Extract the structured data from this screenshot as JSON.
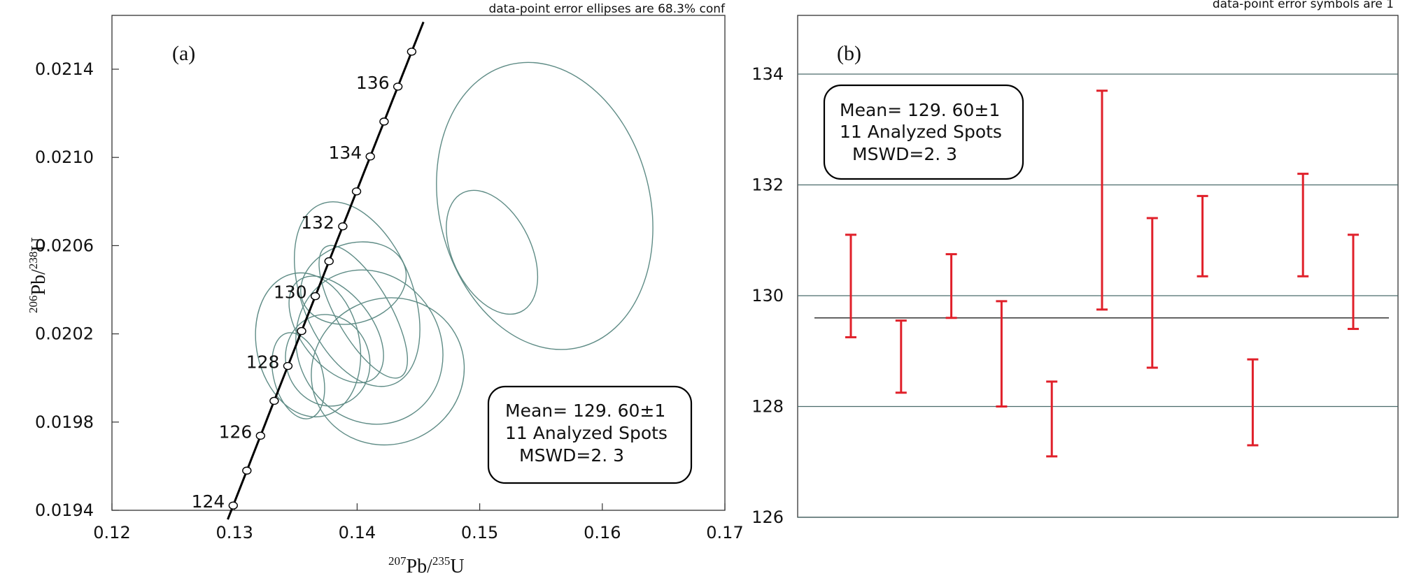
{
  "chart_data": [
    {
      "type": "scatter",
      "panel_label": "(a)",
      "note": "data-point error ellipses are 68.3% conf",
      "xlabel_sup": "207",
      "xlabel_main": "Pb/",
      "xlabel_sup2": "235",
      "xlabel_end": "U",
      "ylabel_sup": "206",
      "ylabel_main": "Pb/",
      "ylabel_sup2": "238",
      "ylabel_end": "U",
      "xlim": [
        0.12,
        0.17
      ],
      "ylim": [
        0.0194,
        0.0216
      ],
      "xticks": [
        0.12,
        0.13,
        0.14,
        0.15,
        0.16,
        0.17
      ],
      "xtick_labels": [
        "0.12",
        "0.13",
        "0.14",
        "0.15",
        "0.16",
        "0.17"
      ],
      "yticks": [
        0.0194,
        0.0198,
        0.0202,
        0.0206,
        0.021,
        0.0214
      ],
      "ytick_labels": [
        "0.0194",
        "0.0198",
        "0.0202",
        "0.0206",
        "0.0210",
        "0.0214"
      ],
      "concordia_ages": [
        124,
        125,
        126,
        127,
        128,
        129,
        130,
        131,
        132,
        133,
        134,
        135,
        136,
        137
      ],
      "concordia_labels": [
        "124",
        "126",
        "128",
        "130",
        "132",
        "134",
        "136"
      ],
      "ellipses": [
        {
          "x": 0.1553,
          "y": 0.02078,
          "rx": 0.0086,
          "ry": 0.00066,
          "rot": -14
        },
        {
          "x": 0.151,
          "y": 0.02057,
          "rx": 0.0032,
          "ry": 0.0003,
          "rot": -26
        },
        {
          "x": 0.1397,
          "y": 0.02043,
          "rx": 0.0044,
          "ry": 0.00018,
          "rot": -18
        },
        {
          "x": 0.1405,
          "y": 0.0203,
          "rx": 0.0022,
          "ry": 0.00034,
          "rot": -30
        },
        {
          "x": 0.14,
          "y": 0.02038,
          "rx": 0.0045,
          "ry": 0.00044,
          "rot": -22
        },
        {
          "x": 0.1383,
          "y": 0.02022,
          "rx": 0.0029,
          "ry": 0.00028,
          "rot": -38
        },
        {
          "x": 0.141,
          "y": 0.02014,
          "rx": 0.0058,
          "ry": 0.00036,
          "rot": -32
        },
        {
          "x": 0.1425,
          "y": 0.02003,
          "rx": 0.0063,
          "ry": 0.00033,
          "rot": -25
        },
        {
          "x": 0.1376,
          "y": 0.02008,
          "rx": 0.0034,
          "ry": 0.00021,
          "rot": -20
        },
        {
          "x": 0.1352,
          "y": 0.02001,
          "rx": 0.002,
          "ry": 0.0002,
          "rot": -15
        },
        {
          "x": 0.136,
          "y": 0.02015,
          "rx": 0.0042,
          "ry": 0.00033,
          "rot": -12
        }
      ],
      "mean_box": {
        "line1": "Mean= 129. 60±1",
        "line2": "11 Analyzed Spots",
        "line3": "MSWD=2. 3"
      }
    },
    {
      "type": "bar",
      "panel_label": "(b)",
      "note": "data-point error symbols are 1",
      "ylim": [
        126,
        135
      ],
      "yticks": [
        126,
        128,
        130,
        132,
        134
      ],
      "ytick_labels": [
        "126",
        "128",
        "130",
        "132",
        "134"
      ],
      "mean": 129.6,
      "error_bars": [
        {
          "low": 129.25,
          "high": 131.1
        },
        {
          "low": 128.25,
          "high": 129.55
        },
        {
          "low": 129.6,
          "high": 130.75
        },
        {
          "low": 128.0,
          "high": 129.9
        },
        {
          "low": 127.1,
          "high": 128.45
        },
        {
          "low": 129.75,
          "high": 133.7
        },
        {
          "low": 128.7,
          "high": 131.4
        },
        {
          "low": 130.35,
          "high": 131.8
        },
        {
          "low": 127.3,
          "high": 128.85
        },
        {
          "low": 130.35,
          "high": 132.2
        },
        {
          "low": 129.4,
          "high": 131.1
        }
      ],
      "mean_box": {
        "line1": "Mean= 129. 60±1",
        "line2": "11 Analyzed Spots",
        "line3": "MSWD=2. 3"
      }
    }
  ]
}
